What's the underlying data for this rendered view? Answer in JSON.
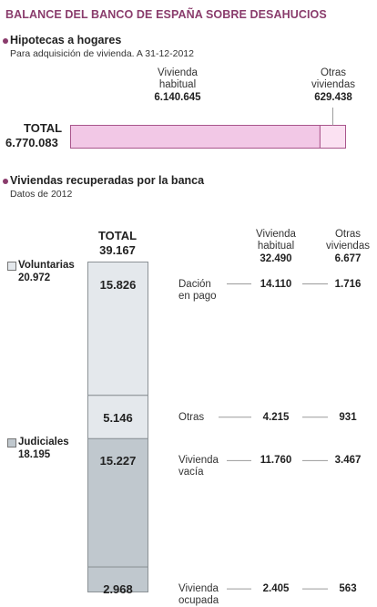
{
  "title": "BALANCE DEL BANCO DE ESPAÑA SOBRE DESAHUCIOS",
  "colors": {
    "title": "#8a3c6c",
    "mortgage_main": "#f2c8e6",
    "mortgage_other": "#fbe1f2",
    "mortgage_stroke": "#a9568c",
    "voluntarias": "#e4e8ec",
    "judiciales": "#c0c8ce",
    "bar_stroke": "#8c9296"
  },
  "section1": {
    "title": "Hipotecas a hogares",
    "subtitle": "Para adquisición de vivienda. A 31-12-2012",
    "total_label": "TOTAL",
    "total_value": "6.770.083",
    "habitual_label_1": "Vivienda",
    "habitual_label_2": "habitual",
    "habitual_value": "6.140.645",
    "otras_label_1": "Otras",
    "otras_label_2": "viviendas",
    "otras_value": "629.438"
  },
  "section2": {
    "title": "Viviendas recuperadas por la banca",
    "subtitle": "Datos de 2012",
    "total_label": "TOTAL",
    "total_value": "39.167",
    "col_habitual_1": "Vivienda",
    "col_habitual_2": "habitual",
    "col_habitual_value": "32.490",
    "col_otras_1": "Otras",
    "col_otras_2": "viviendas",
    "col_otras_value": "6.677",
    "groups": [
      {
        "label": "Voluntarias",
        "value": "20.972"
      },
      {
        "label": "Judiciales",
        "value": "18.195"
      }
    ],
    "rows": [
      {
        "label_1": "Dación",
        "label_2": "en pago",
        "total": "15.826",
        "habitual": "14.110",
        "otras": "1.716"
      },
      {
        "label_1": "Otras",
        "label_2": "",
        "total": "5.146",
        "habitual": "4.215",
        "otras": "931"
      },
      {
        "label_1": "Vivienda",
        "label_2": "vacía",
        "total": "15.227",
        "habitual": "11.760",
        "otras": "3.467"
      },
      {
        "label_1": "Vivienda",
        "label_2": "ocupada",
        "total": "2.968",
        "habitual": "2.405",
        "otras": "563"
      }
    ]
  },
  "chart_data": [
    {
      "type": "bar",
      "orientation": "horizontal-stacked",
      "title": "Hipotecas a hogares",
      "subtitle": "Para adquisición de vivienda. A 31-12-2012",
      "categories": [
        "TOTAL"
      ],
      "total": 6770083,
      "series": [
        {
          "name": "Vivienda habitual",
          "values": [
            6140645
          ]
        },
        {
          "name": "Otras viviendas",
          "values": [
            629438
          ]
        }
      ]
    },
    {
      "type": "bar",
      "orientation": "vertical-stacked",
      "title": "Viviendas recuperadas por la banca",
      "subtitle": "Datos de 2012",
      "total": 39167,
      "groups": [
        {
          "name": "Voluntarias",
          "value": 20972
        },
        {
          "name": "Judiciales",
          "value": 18195
        }
      ],
      "categories": [
        "Dación en pago",
        "Otras",
        "Vivienda vacía",
        "Vivienda ocupada"
      ],
      "values": [
        15826,
        5146,
        15227,
        2968
      ],
      "breakdown": [
        {
          "name": "Vivienda habitual",
          "total": 32490,
          "values": [
            14110,
            4215,
            11760,
            2405
          ]
        },
        {
          "name": "Otras viviendas",
          "total": 6677,
          "values": [
            1716,
            931,
            3467,
            563
          ]
        }
      ]
    }
  ]
}
